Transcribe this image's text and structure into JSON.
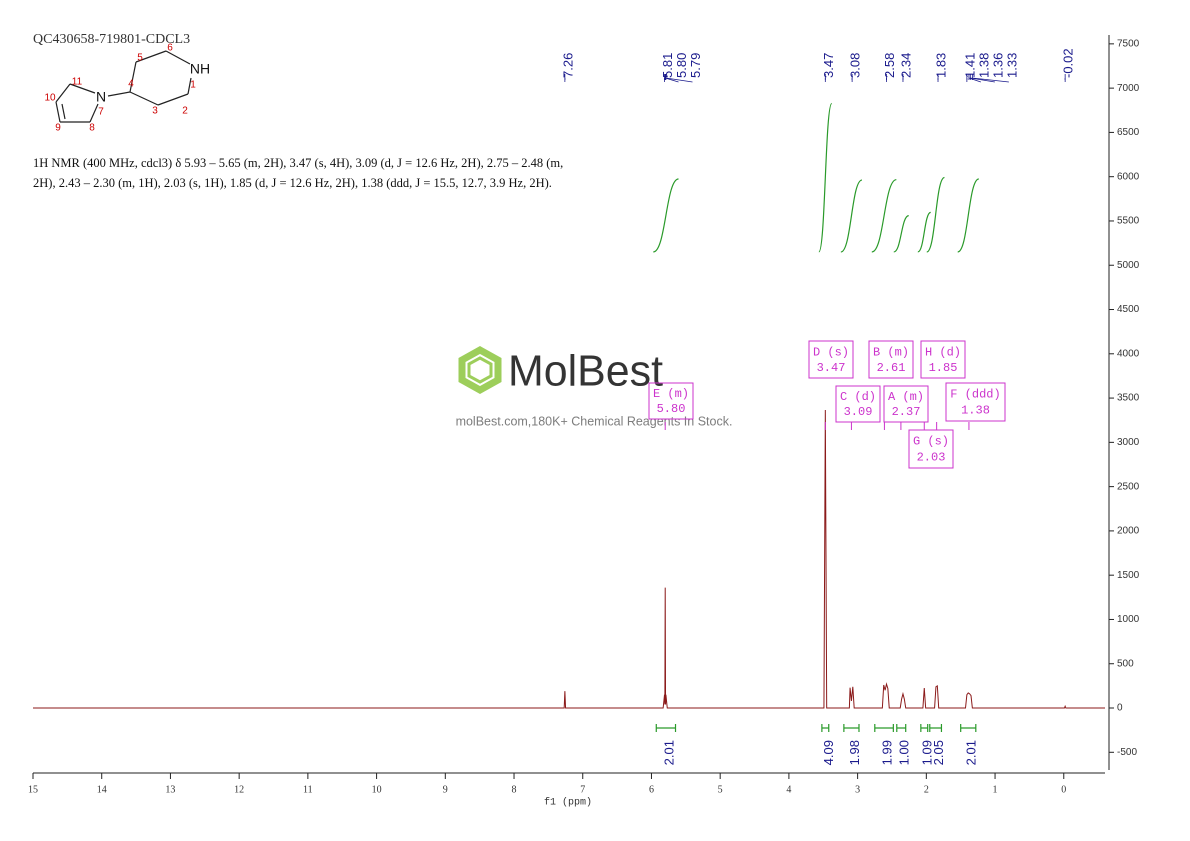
{
  "chart_data": {
    "type": "nmr",
    "title": "QC430658-719801-CDCL3",
    "description": [
      "1H NMR (400 MHz, cdcl3) δ 5.93 – 5.65 (m, 2H), 3.47 (s, 4H), 3.09 (d, J = 12.6 Hz, 2H), 2.75 – 2.48 (m,",
      "2H), 2.43 – 2.30 (m, 1H), 2.03 (s, 1H), 1.85 (d, J = 12.6 Hz, 2H), 1.38 (ddd, J = 15.5, 12.7, 3.9 Hz, 2H)."
    ],
    "structure": {
      "atoms": [
        "11",
        "10",
        "9",
        "8",
        "7",
        "N",
        "4",
        "3",
        "2",
        "1",
        "NH",
        "6",
        "5"
      ]
    },
    "xlabel": "f1 (ppm)",
    "xlim": [
      15,
      -0.6
    ],
    "xticks": [
      15,
      14,
      13,
      12,
      11,
      10,
      9,
      8,
      7,
      6,
      5,
      4,
      3,
      2,
      1,
      0
    ],
    "ylim": [
      -700,
      7600
    ],
    "yticks": [
      -500,
      0,
      500,
      1000,
      1500,
      2000,
      2500,
      3000,
      3500,
      4000,
      4500,
      5000,
      5500,
      6000,
      6500,
      7000,
      7500
    ],
    "spectrum_color": "#8b1a1a",
    "integral_color": "#2a9a2a",
    "peak_label_color": "#1a1a8c",
    "multiplet_color": "#cc33cc",
    "spectrum": {
      "x": [
        15,
        7.27,
        7.26,
        7.25,
        5.83,
        5.81,
        5.805,
        5.8,
        5.795,
        5.79,
        5.77,
        3.49,
        3.47,
        3.45,
        3.12,
        3.11,
        3.09,
        3.07,
        3.05,
        2.64,
        2.62,
        2.6,
        2.58,
        2.56,
        2.54,
        2.38,
        2.36,
        2.34,
        2.32,
        2.3,
        2.05,
        2.03,
        2.01,
        1.88,
        1.86,
        1.84,
        1.82,
        1.43,
        1.41,
        1.39,
        1.37,
        1.35,
        1.33,
        -0.01,
        -0.02,
        -0.03,
        -0.6
      ],
      "y": [
        0,
        0,
        190,
        0,
        0,
        150,
        40,
        1360,
        40,
        150,
        0,
        0,
        3365,
        0,
        0,
        230,
        80,
        240,
        0,
        0,
        260,
        200,
        270,
        220,
        0,
        0,
        100,
        160,
        100,
        0,
        0,
        225,
        0,
        0,
        240,
        250,
        0,
        0,
        150,
        170,
        160,
        140,
        0,
        0,
        20,
        0,
        0
      ]
    },
    "peak_labels": [
      7.26,
      5.81,
      {
        "value": 5.8,
        "label": "5.80"
      },
      5.79,
      3.47,
      3.08,
      2.58,
      2.34,
      1.83,
      1.41,
      1.38,
      1.36,
      1.33,
      -0.02
    ],
    "integrals": [
      {
        "from": 5.93,
        "to": 5.65,
        "value": 2.01
      },
      {
        "from": 3.52,
        "to": 3.42,
        "value": 4.09
      },
      {
        "from": 3.2,
        "to": 2.98,
        "value": 1.98
      },
      {
        "from": 2.75,
        "to": 2.48,
        "value": 1.99
      },
      {
        "from": 2.43,
        "to": 2.3,
        "value": {
          "value": 1,
          "label": "1.00"
        }
      },
      {
        "from": 2.08,
        "to": 1.98,
        "value": 1.09
      },
      {
        "from": 1.95,
        "to": 1.78,
        "value": 2.05
      },
      {
        "from": 1.5,
        "to": 1.28,
        "value": 2.01
      }
    ],
    "multiplets": [
      {
        "label": "D (s)",
        "shift": 3.47
      },
      {
        "label": "B (m)",
        "shift": 2.61
      },
      {
        "label": "H (d)",
        "shift": 1.85
      },
      {
        "label": "E (m)",
        "shift": {
          "value": 5.8,
          "label": "5.80"
        }
      },
      {
        "label": "C (d)",
        "shift": 3.09
      },
      {
        "label": "A (m)",
        "shift": 2.37
      },
      {
        "label": "F (ddd)",
        "shift": 1.38
      },
      {
        "label": "G (s)",
        "shift": 2.03
      }
    ],
    "watermark": {
      "logo": "MolBest",
      "text": "molBest.com,180K+ Chemical Reagents In Stock."
    }
  }
}
